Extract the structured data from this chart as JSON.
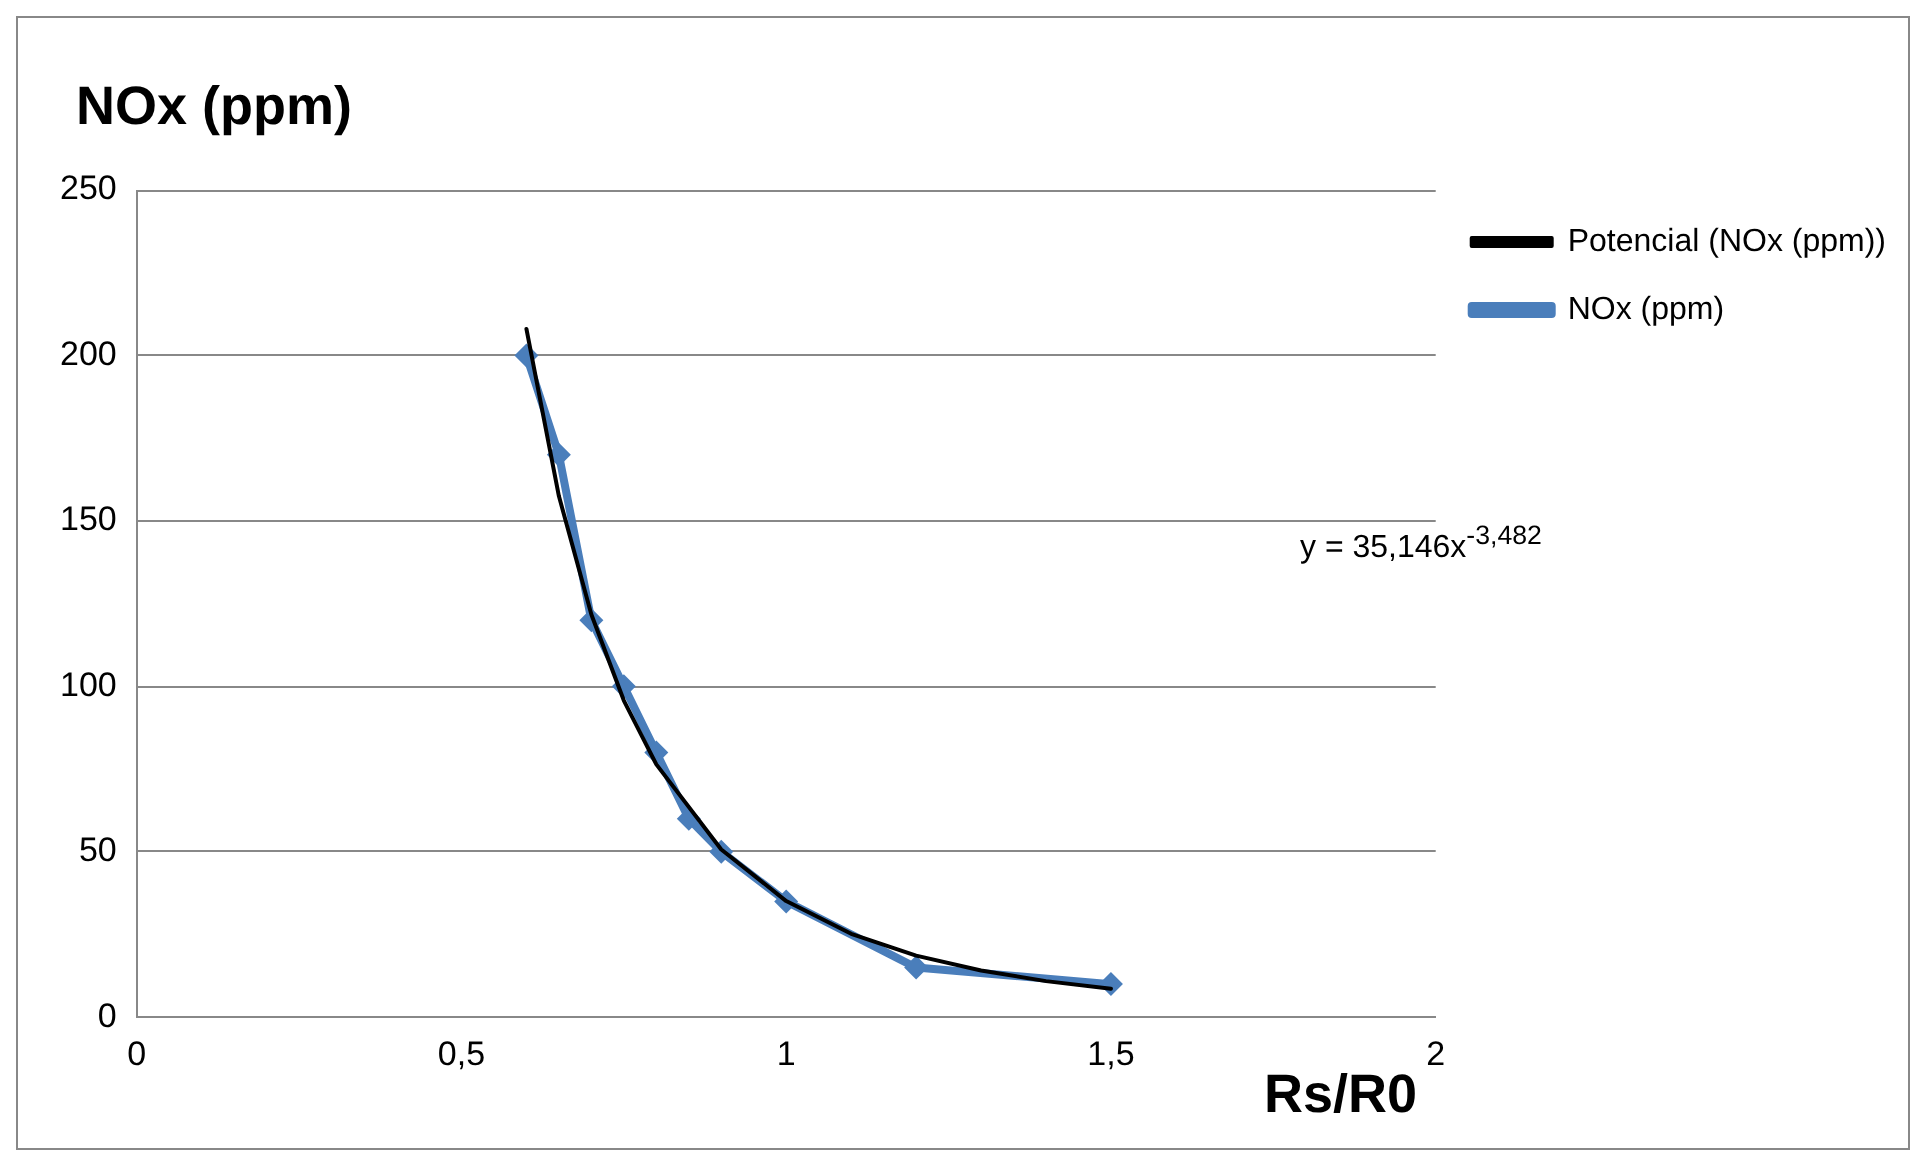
{
  "chart_data": {
    "type": "line",
    "ylabel": "NOx (ppm)",
    "xlabel": "Rs/R0",
    "series": [
      {
        "name": "NOx (ppm)",
        "color": "#4a7ebb",
        "marker": "diamond",
        "x": [
          0.6,
          0.65,
          0.7,
          0.75,
          0.8,
          0.85,
          0.9,
          1.0,
          1.2,
          1.5
        ],
        "values": [
          200,
          170,
          120,
          100,
          80,
          60,
          50,
          35,
          15,
          10
        ]
      },
      {
        "name": "Potencial (NOx (ppm))",
        "color": "#000000",
        "marker": "none",
        "x": [
          0.6,
          0.65,
          0.7,
          0.75,
          0.8,
          0.9,
          1.0,
          1.1,
          1.2,
          1.3,
          1.4,
          1.5
        ],
        "values": [
          208,
          157.5,
          121.7,
          95.7,
          76.4,
          50.7,
          35.1,
          25.2,
          18.6,
          14.1,
          10.9,
          8.6
        ]
      }
    ],
    "xlim": [
      0,
      2
    ],
    "xticks": [
      0,
      {
        "value": 0.5,
        "label": "0,5"
      },
      1,
      {
        "value": 1.5,
        "label": "1,5"
      },
      2
    ],
    "ylim": [
      0,
      250
    ],
    "yticks": [
      0,
      50,
      100,
      150,
      200,
      250
    ],
    "grid": "y",
    "legend": "right",
    "annotations": [
      "y = 35,146x$^{-3,482}$"
    ]
  }
}
